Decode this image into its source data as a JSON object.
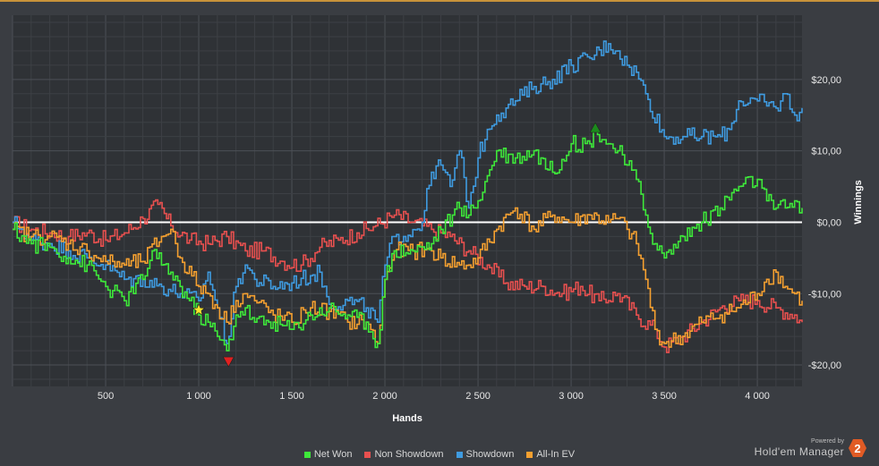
{
  "chart_data": {
    "type": "line",
    "xlabel": "Hands",
    "ylabel": "Winnings",
    "xlim": [
      0,
      4240
    ],
    "ylim": [
      -23,
      29
    ],
    "x_ticks": [
      500,
      1000,
      1500,
      2000,
      2500,
      3000,
      3500,
      4000
    ],
    "x_tick_labels": [
      "500",
      "1 000",
      "1 500",
      "2 000",
      "2 500",
      "3 000",
      "3 500",
      "4 000"
    ],
    "y_ticks": [
      20,
      10,
      0,
      -10,
      -20
    ],
    "y_tick_labels": [
      "$20,00",
      "$10,00",
      "$0,00",
      "-$10,00",
      "-$20,00"
    ],
    "grid": true,
    "legend_position": "bottom",
    "series": [
      {
        "name": "Non Showdown",
        "color": "#e8504f",
        "x": [
          0,
          100,
          200,
          300,
          400,
          500,
          600,
          700,
          780,
          850,
          950,
          1050,
          1150,
          1250,
          1350,
          1450,
          1550,
          1650,
          1750,
          1850,
          1950,
          2050,
          2150,
          2250,
          2350,
          2450,
          2550,
          2650,
          2750,
          2850,
          2950,
          3050,
          3150,
          3250,
          3350,
          3450,
          3500,
          3600,
          3700,
          3800,
          3900,
          4000,
          4100,
          4200,
          4240
        ],
        "values": [
          0,
          -1,
          -1.5,
          -2,
          -1.5,
          -2.5,
          -1.5,
          0.5,
          2.5,
          -0.5,
          -2.5,
          -3,
          -2,
          -4,
          -4,
          -5.5,
          -6,
          -3.5,
          -2.5,
          -1.5,
          -0.5,
          1,
          0,
          -1,
          -2,
          -4,
          -6,
          -8.5,
          -9,
          -9,
          -10,
          -9,
          -11,
          -10,
          -13,
          -15,
          -17.5,
          -16,
          -14,
          -12,
          -11,
          -11,
          -12,
          -13,
          -14
        ]
      },
      {
        "name": "Showdown",
        "color": "#3f9be0",
        "x": [
          0,
          50,
          100,
          200,
          300,
          400,
          500,
          600,
          700,
          800,
          900,
          1000,
          1050,
          1100,
          1150,
          1200,
          1250,
          1300,
          1400,
          1500,
          1600,
          1650,
          1700,
          1800,
          1900,
          1960,
          2000,
          2050,
          2100,
          2200,
          2250,
          2300,
          2350,
          2400,
          2450,
          2500,
          2550,
          2600,
          2650,
          2700,
          2800,
          2900,
          3000,
          3100,
          3200,
          3250,
          3300,
          3350,
          3400,
          3500,
          3600,
          3700,
          3800,
          3850,
          3900,
          4000,
          4100,
          4150,
          4200,
          4240
        ],
        "values": [
          0,
          -1,
          -2.5,
          -3,
          -4,
          -5,
          -6,
          -8,
          -8,
          -9,
          -10,
          -11,
          -7,
          -12,
          -17,
          -9,
          -6,
          -8,
          -9,
          -8.5,
          -7.5,
          -7,
          -11.5,
          -11,
          -12,
          -14,
          -6,
          -2,
          -2,
          0,
          7,
          8,
          5,
          10,
          2,
          9,
          13,
          15,
          16,
          17,
          19,
          20,
          22,
          23,
          25,
          24,
          22,
          21,
          18,
          12,
          12,
          12,
          12,
          13,
          17,
          17,
          16,
          18,
          15,
          16
        ]
      },
      {
        "name": "All-In EV",
        "color": "#f5a030",
        "x": [
          0,
          100,
          200,
          300,
          400,
          500,
          600,
          700,
          800,
          850,
          900,
          1000,
          1050,
          1100,
          1150,
          1200,
          1250,
          1300,
          1400,
          1500,
          1600,
          1700,
          1800,
          1900,
          1960,
          2000,
          2050,
          2150,
          2250,
          2300,
          2400,
          2450,
          2500,
          2600,
          2700,
          2800,
          2900,
          3000,
          3100,
          3200,
          3250,
          3300,
          3350,
          3400,
          3450,
          3500,
          3600,
          3700,
          3800,
          3900,
          4000,
          4050,
          4100,
          4150,
          4200,
          4240
        ],
        "values": [
          -1,
          -2,
          -2,
          -3,
          -4,
          -5.5,
          -6,
          -5.5,
          -2,
          -1,
          -5,
          -9,
          -10,
          -12,
          -14,
          -11,
          -10,
          -11,
          -13,
          -14,
          -12,
          -12.5,
          -14,
          -14,
          -17,
          -8,
          -4,
          -4,
          -4,
          -5,
          -6,
          -6,
          -5,
          -1,
          2,
          -1,
          1,
          0,
          1,
          0,
          0.5,
          -1,
          -3,
          -8,
          -15,
          -17,
          -16,
          -14,
          -13,
          -12,
          -10,
          -8,
          -7,
          -9,
          -10,
          -11
        ]
      },
      {
        "name": "Net Won",
        "color": "#3ee83a",
        "x": [
          0,
          100,
          200,
          300,
          400,
          500,
          600,
          700,
          750,
          800,
          850,
          900,
          1000,
          1050,
          1100,
          1150,
          1200,
          1250,
          1300,
          1400,
          1500,
          1600,
          1700,
          1800,
          1900,
          1960,
          2000,
          2050,
          2150,
          2250,
          2300,
          2400,
          2450,
          2500,
          2600,
          2700,
          2800,
          2900,
          3000,
          3100,
          3130,
          3200,
          3250,
          3300,
          3350,
          3400,
          3450,
          3500,
          3600,
          3700,
          3800,
          3900,
          4000,
          4050,
          4100,
          4150,
          4200,
          4240
        ],
        "values": [
          -1,
          -3,
          -3.5,
          -5,
          -6,
          -9,
          -11,
          -8,
          -4,
          -6,
          -7,
          -9,
          -13,
          -14,
          -16,
          -18,
          -13,
          -12,
          -14,
          -14,
          -15,
          -13,
          -12,
          -13,
          -14,
          -17,
          -8,
          -4,
          -4,
          -3,
          -1,
          2,
          1,
          3,
          10,
          9,
          10,
          7,
          11,
          11,
          13,
          11,
          10,
          8,
          6,
          1,
          -3,
          -5,
          -2,
          0,
          2,
          5,
          6,
          3,
          2,
          2,
          3,
          2
        ]
      }
    ],
    "markers": [
      {
        "x": 1000,
        "y": -12.3,
        "type": "star",
        "color": "#f7e52a"
      },
      {
        "x": 1160,
        "y": -19.5,
        "type": "triangle-down",
        "color": "#e02020"
      },
      {
        "x": 3130,
        "y": 13.2,
        "type": "triangle-up",
        "color": "#1c8a1c"
      }
    ]
  },
  "legend": [
    {
      "label": "Net Won",
      "color": "#3ee83a"
    },
    {
      "label": "Non Showdown",
      "color": "#e8504f"
    },
    {
      "label": "Showdown",
      "color": "#3f9be0"
    },
    {
      "label": "All-In EV",
      "color": "#f5a030"
    }
  ],
  "brand": {
    "powered_by": "Powered by",
    "name": "Hold'em Manager",
    "badge": "2"
  }
}
